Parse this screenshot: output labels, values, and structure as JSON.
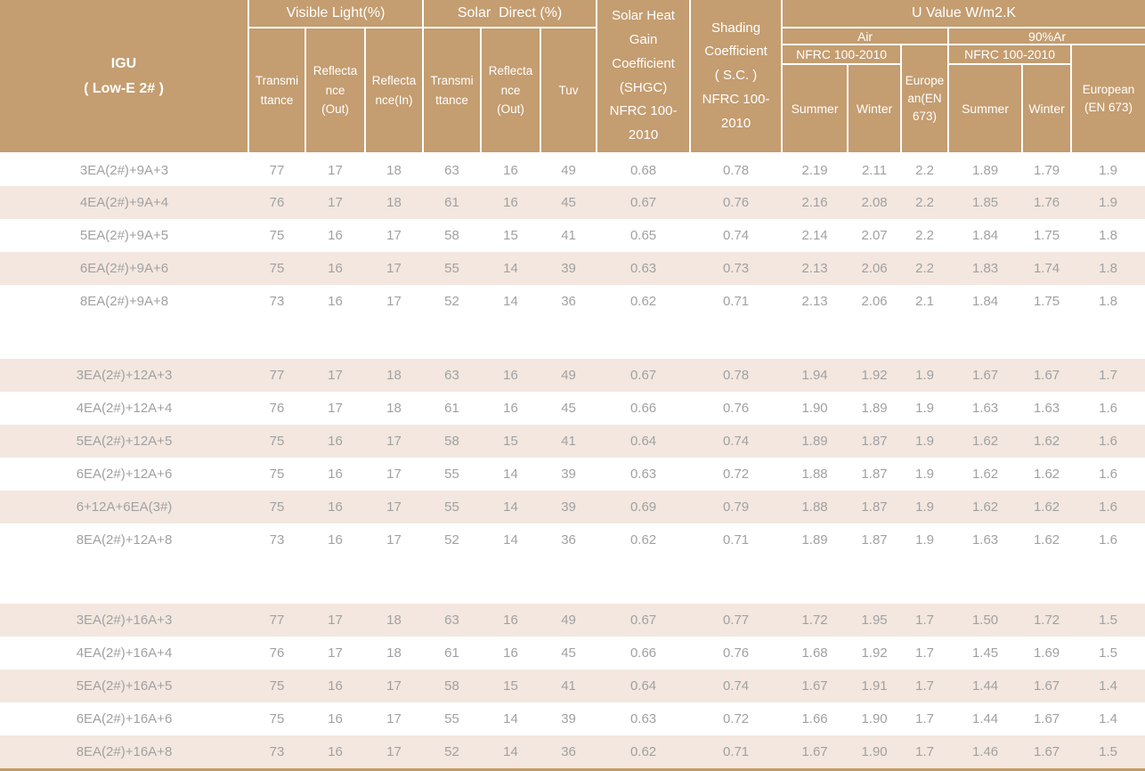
{
  "title": "IGU Low-E 2# performance specification table",
  "colors": {
    "header_bg": "#C49D70",
    "header_text": "#FFFFFF",
    "row_shade": "#F3E7DF",
    "data_text": "#A1A1A2",
    "bottom_line": "#C59C62"
  },
  "header": {
    "igu": "IGU\n( Low-E 2# )",
    "visible_light": "Visible Light(%)",
    "solar_direct": "Solar  Direct (%)",
    "vl_transmittance": "Transmi\nttance",
    "vl_reflectance_out": "Reflecta\nnce\n(Out)",
    "vl_reflectance_in": "Reflecta\nnce(In)",
    "sd_transmittance": "Transmi\nttance",
    "sd_reflectance_out": "Reflecta\nnce\n(Out)",
    "tuv": "Tuv",
    "shgc": "Solar Heat\nGain\nCoefficient\n(SHGC)\nNFRC 100-\n2010",
    "shading": "Shading\nCoefficient\n( S.C. )\nNFRC 100-\n2010",
    "u_value": "U Value W/m2.K",
    "air": "Air",
    "argon": "90%Ar",
    "nfrc_air": "NFRC 100-2010",
    "european_air": "Europe\nan(EN\n673)",
    "nfrc_argon": "NFRC 100-2010",
    "european_argon": "European\n(EN 673)",
    "summer_air": "Summer",
    "winter_air": "Winter",
    "summer_argon": "Summer",
    "winter_argon": "Winter"
  },
  "table": {
    "blocks": [
      {
        "rows": [
          {
            "igu": "3EA(2#)+9A+3",
            "shaded": false,
            "values": [
              "77",
              "17",
              "18",
              "63",
              "16",
              "49",
              "0.68",
              "0.78",
              "2.19",
              "2.11",
              "2.2",
              "1.89",
              "1.79",
              "1.9"
            ]
          },
          {
            "igu": "4EA(2#)+9A+4",
            "shaded": true,
            "values": [
              "76",
              "17",
              "18",
              "61",
              "16",
              "45",
              "0.67",
              "0.76",
              "2.16",
              "2.08",
              "2.2",
              "1.85",
              "1.76",
              "1.9"
            ]
          },
          {
            "igu": "5EA(2#)+9A+5",
            "shaded": false,
            "values": [
              "75",
              "16",
              "17",
              "58",
              "15",
              "41",
              "0.65",
              "0.74",
              "2.14",
              "2.07",
              "2.2",
              "1.84",
              "1.75",
              "1.8"
            ]
          },
          {
            "igu": "6EA(2#)+9A+6",
            "shaded": true,
            "values": [
              "75",
              "16",
              "17",
              "55",
              "14",
              "39",
              "0.63",
              "0.73",
              "2.13",
              "2.06",
              "2.2",
              "1.83",
              "1.74",
              "1.8"
            ]
          },
          {
            "igu": "8EA(2#)+9A+8",
            "shaded": false,
            "values": [
              "73",
              "16",
              "17",
              "52",
              "14",
              "36",
              "0.62",
              "0.71",
              "2.13",
              "2.06",
              "2.1",
              "1.84",
              "1.75",
              "1.8"
            ]
          }
        ]
      },
      {
        "rows": [
          {
            "igu": "3EA(2#)+12A+3",
            "shaded": true,
            "values": [
              "77",
              "17",
              "18",
              "63",
              "16",
              "49",
              "0.67",
              "0.78",
              "1.94",
              "1.92",
              "1.9",
              "1.67",
              "1.67",
              "1.7"
            ]
          },
          {
            "igu": "4EA(2#)+12A+4",
            "shaded": false,
            "values": [
              "76",
              "17",
              "18",
              "61",
              "16",
              "45",
              "0.66",
              "0.76",
              "1.90",
              "1.89",
              "1.9",
              "1.63",
              "1.63",
              "1.6"
            ]
          },
          {
            "igu": "5EA(2#)+12A+5",
            "shaded": true,
            "values": [
              "75",
              "16",
              "17",
              "58",
              "15",
              "41",
              "0.64",
              "0.74",
              "1.89",
              "1.87",
              "1.9",
              "1.62",
              "1.62",
              "1.6"
            ]
          },
          {
            "igu": "6EA(2#)+12A+6",
            "shaded": false,
            "values": [
              "75",
              "16",
              "17",
              "55",
              "14",
              "39",
              "0.63",
              "0.72",
              "1.88",
              "1.87",
              "1.9",
              "1.62",
              "1.62",
              "1.6"
            ]
          },
          {
            "igu": "6+12A+6EA(3#)",
            "shaded": true,
            "values": [
              "75",
              "16",
              "17",
              "55",
              "14",
              "39",
              "0.69",
              "0.79",
              "1.88",
              "1.87",
              "1.9",
              "1.62",
              "1.62",
              "1.6"
            ]
          },
          {
            "igu": "8EA(2#)+12A+8",
            "shaded": false,
            "values": [
              "73",
              "16",
              "17",
              "52",
              "14",
              "36",
              "0.62",
              "0.71",
              "1.89",
              "1.87",
              "1.9",
              "1.63",
              "1.62",
              "1.6"
            ]
          }
        ]
      },
      {
        "rows": [
          {
            "igu": "3EA(2#)+16A+3",
            "shaded": true,
            "values": [
              "77",
              "17",
              "18",
              "63",
              "16",
              "49",
              "0.67",
              "0.77",
              "1.72",
              "1.95",
              "1.7",
              "1.50",
              "1.72",
              "1.5"
            ]
          },
          {
            "igu": "4EA(2#)+16A+4",
            "shaded": false,
            "values": [
              "76",
              "17",
              "18",
              "61",
              "16",
              "45",
              "0.66",
              "0.76",
              "1.68",
              "1.92",
              "1.7",
              "1.45",
              "1.69",
              "1.5"
            ]
          },
          {
            "igu": "5EA(2#)+16A+5",
            "shaded": true,
            "values": [
              "75",
              "16",
              "17",
              "58",
              "15",
              "41",
              "0.64",
              "0.74",
              "1.67",
              "1.91",
              "1.7",
              "1.44",
              "1.67",
              "1.4"
            ]
          },
          {
            "igu": "6EA(2#)+16A+6",
            "shaded": false,
            "values": [
              "75",
              "16",
              "17",
              "55",
              "14",
              "39",
              "0.63",
              "0.72",
              "1.66",
              "1.90",
              "1.7",
              "1.44",
              "1.67",
              "1.4"
            ]
          },
          {
            "igu": "8EA(2#)+16A+8",
            "shaded": true,
            "values": [
              "73",
              "16",
              "17",
              "52",
              "14",
              "36",
              "0.62",
              "0.71",
              "1.67",
              "1.90",
              "1.7",
              "1.46",
              "1.67",
              "1.5"
            ]
          }
        ]
      }
    ]
  }
}
